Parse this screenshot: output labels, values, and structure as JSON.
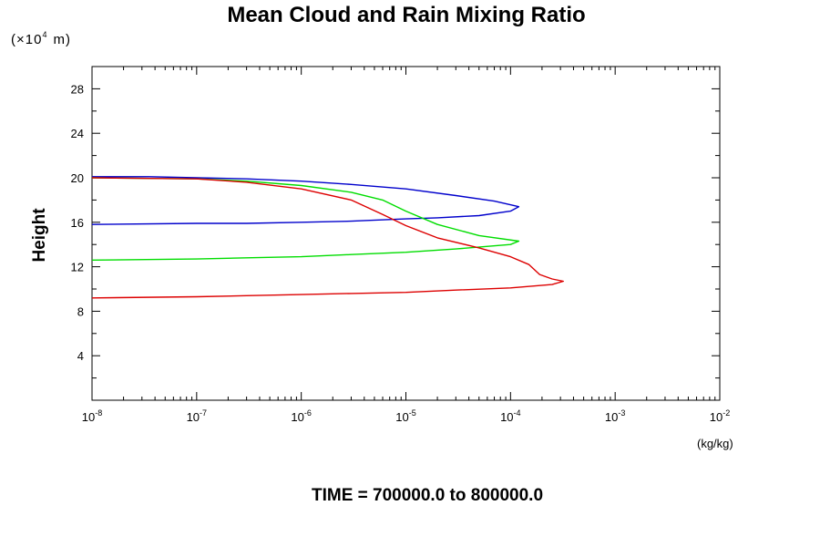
{
  "chart_data": {
    "type": "line",
    "title": "Mean Cloud and Rain Mixing Ratio",
    "y_scale_label": "(×10",
    "y_scale_exp": "4",
    "y_scale_unit": "m)",
    "ylabel": "Height",
    "xlabel": "(kg/kg)",
    "footer": "TIME = 700000.0 to 800000.0",
    "x_scale": "log",
    "x_ticks": [
      {
        "base": "10",
        "exp": "-8"
      },
      {
        "base": "10",
        "exp": "-7"
      },
      {
        "base": "10",
        "exp": "-6"
      },
      {
        "base": "10",
        "exp": "-5"
      },
      {
        "base": "10",
        "exp": "-4"
      },
      {
        "base": "10",
        "exp": "-3"
      },
      {
        "base": "10",
        "exp": "-2"
      }
    ],
    "xlim": [
      1e-08,
      0.01
    ],
    "y_ticks": [
      "4",
      "8",
      "12",
      "16",
      "20",
      "24",
      "28"
    ],
    "ylim": [
      0,
      30
    ],
    "grid": false,
    "series": [
      {
        "color": "#0000cc",
        "x": [
          1e-08,
          3.5e-08,
          1e-07,
          3e-07,
          1e-06,
          3e-06,
          1e-05,
          3e-05,
          7e-05,
          0.00012,
          0.0001,
          5e-05,
          2e-05,
          1e-05,
          3e-06,
          1e-06,
          3e-07,
          1e-07,
          1e-08
        ],
        "y": [
          20.1,
          20.1,
          20.0,
          19.9,
          19.7,
          19.4,
          19.0,
          18.4,
          17.9,
          17.4,
          17.0,
          16.6,
          16.4,
          16.3,
          16.1,
          16.0,
          15.9,
          15.9,
          15.8
        ]
      },
      {
        "color": "#00dd00",
        "x": [
          1e-08,
          1e-07,
          3e-07,
          1e-06,
          3e-06,
          6e-06,
          1e-05,
          2e-05,
          5e-05,
          0.00012,
          0.0001,
          3e-05,
          1e-05,
          3e-06,
          1e-06,
          3e-07,
          1e-07,
          1e-08
        ],
        "y": [
          20.0,
          19.9,
          19.7,
          19.3,
          18.7,
          18.0,
          17.0,
          15.8,
          14.8,
          14.3,
          14.0,
          13.6,
          13.3,
          13.1,
          12.9,
          12.8,
          12.7,
          12.6
        ]
      },
      {
        "color": "#dd0000",
        "x": [
          1e-08,
          1e-07,
          3e-07,
          1e-06,
          3e-06,
          6e-06,
          1e-05,
          2e-05,
          5e-05,
          0.0001,
          0.00015,
          0.00019,
          0.00025,
          0.00032,
          0.00025,
          0.0001,
          3e-05,
          1e-05,
          3e-06,
          1e-06,
          3e-07,
          1e-07,
          1e-08
        ],
        "y": [
          20.0,
          19.9,
          19.6,
          19.0,
          18.0,
          16.7,
          15.7,
          14.6,
          13.7,
          12.9,
          12.2,
          11.3,
          10.9,
          10.7,
          10.4,
          10.1,
          9.9,
          9.7,
          9.6,
          9.5,
          9.4,
          9.3,
          9.2
        ]
      }
    ]
  }
}
